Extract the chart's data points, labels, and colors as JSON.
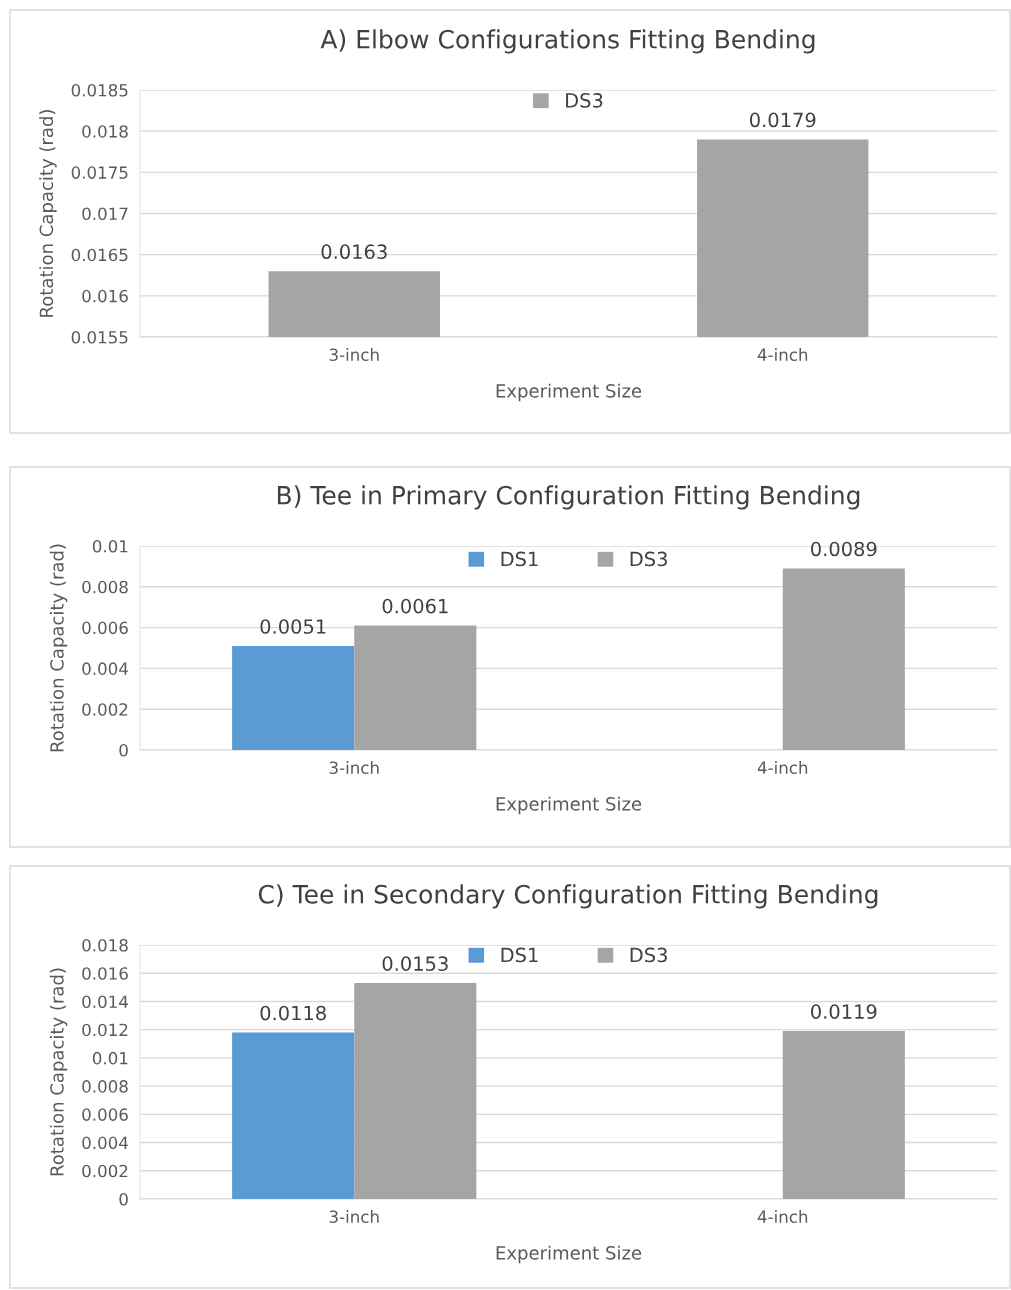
{
  "chart_data": [
    {
      "type": "bar",
      "title": "A) Elbow Configurations Fitting Bending",
      "xlabel": "Experiment Size",
      "ylabel": "Rotation Capacity (rad)",
      "categories": [
        "3-inch",
        "4-inch"
      ],
      "series": [
        {
          "name": "DS3",
          "color": "#a5a5a5",
          "values": [
            0.0163,
            0.0179
          ]
        }
      ],
      "ylim": [
        0.0155,
        0.0185
      ],
      "yticks": [
        0.0155,
        0.016,
        0.0165,
        0.017,
        0.0175,
        0.018,
        0.0185
      ],
      "grid": "y",
      "legend": "top",
      "data_labels": true
    },
    {
      "type": "bar",
      "title": "B) Tee in Primary Configuration Fitting Bending",
      "xlabel": "Experiment Size",
      "ylabel": "Rotation Capacity (rad)",
      "categories": [
        "3-inch",
        "4-inch"
      ],
      "series": [
        {
          "name": "DS1",
          "color": "#5b9bd5",
          "values": [
            0.0051,
            null
          ]
        },
        {
          "name": "DS3",
          "color": "#a5a5a5",
          "values": [
            0.0061,
            0.0089
          ]
        }
      ],
      "ylim": [
        0,
        0.01
      ],
      "yticks": [
        0,
        0.002,
        0.004,
        0.006,
        0.008,
        0.01
      ],
      "grid": "y",
      "legend": "top",
      "data_labels": true
    },
    {
      "type": "bar",
      "title": "C) Tee in Secondary Configuration Fitting Bending",
      "xlabel": "Experiment Size",
      "ylabel": "Rotation Capacity (rad)",
      "categories": [
        "3-inch",
        "4-inch"
      ],
      "series": [
        {
          "name": "DS1",
          "color": "#5b9bd5",
          "values": [
            0.0118,
            null
          ]
        },
        {
          "name": "DS3",
          "color": "#a5a5a5",
          "values": [
            0.0153,
            0.0119
          ]
        }
      ],
      "ylim": [
        0,
        0.018
      ],
      "yticks": [
        0,
        0.002,
        0.004,
        0.006,
        0.008,
        0.01,
        0.012,
        0.014,
        0.016,
        0.018
      ],
      "grid": "y",
      "legend": "top",
      "data_labels": true
    }
  ]
}
